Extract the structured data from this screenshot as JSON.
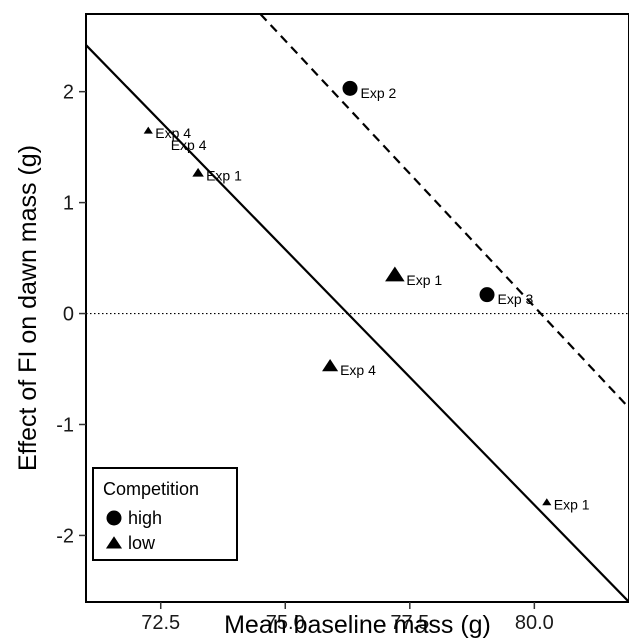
{
  "chart_data": {
    "type": "scatter",
    "xlabel": "Mean baseline mass (g)",
    "ylabel": "Effect of FI on dawn mass (g)",
    "xlim": [
      71.0,
      81.9
    ],
    "ylim": [
      -2.6,
      2.7
    ],
    "x_ticks": [
      "72.5",
      "75.0",
      "77.5",
      "80.0"
    ],
    "x_tick_values": [
      72.5,
      75.0,
      77.5,
      80.0
    ],
    "y_ticks": [
      "-2",
      "-1",
      "0",
      "1",
      "2"
    ],
    "y_tick_values": [
      -2,
      -1,
      0,
      1,
      2
    ],
    "reference_line_y": 0,
    "grid": false,
    "legend": {
      "title": "Competition",
      "placement": "bottom-left",
      "entries": [
        {
          "label": "high",
          "shape": "circle"
        },
        {
          "label": "low",
          "shape": "triangle"
        }
      ]
    },
    "points": [
      {
        "x": 76.3,
        "y": 2.03,
        "label": "Exp 2",
        "competition": "high",
        "size": "large"
      },
      {
        "x": 79.05,
        "y": 0.17,
        "label": "Exp 3",
        "competition": "high",
        "size": "large"
      },
      {
        "x": 72.25,
        "y": 1.65,
        "label": "Exp 4",
        "competition": "low",
        "size": "tiny"
      },
      {
        "x": 73.25,
        "y": 1.27,
        "label": "Exp 1",
        "competition": "low",
        "size": "small"
      },
      {
        "x": 77.2,
        "y": 0.35,
        "label": "Exp 1",
        "competition": "low",
        "size": "large"
      },
      {
        "x": 75.9,
        "y": -0.47,
        "label": "Exp 4",
        "competition": "low",
        "size": "medium"
      },
      {
        "x": 80.25,
        "y": -1.7,
        "label": "Exp 1",
        "competition": "low",
        "size": "tiny"
      }
    ],
    "extra_labels": [
      {
        "x": 72.7,
        "y": 1.52,
        "label": "Exp 4"
      }
    ],
    "fit_lines": [
      {
        "competition": "low",
        "style": "solid",
        "x": [
          71.0,
          81.9
        ],
        "y": [
          2.42,
          -2.6
        ]
      },
      {
        "competition": "high",
        "style": "dashed",
        "x": [
          74.5,
          81.9
        ],
        "y": [
          2.7,
          -0.85
        ]
      }
    ]
  }
}
